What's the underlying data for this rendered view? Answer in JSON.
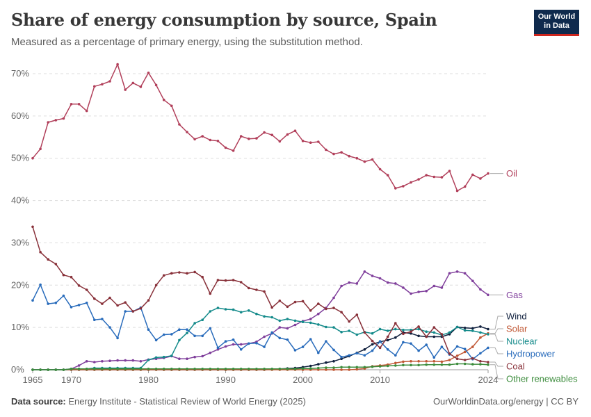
{
  "header": {
    "title": "Share of energy consumption by source, Spain",
    "subtitle": "Measured as a percentage of primary energy, using the substitution method.",
    "logo_line1": "Our World",
    "logo_line2": "in Data"
  },
  "footer": {
    "source_label": "Data source:",
    "source_text": "Energy Institute - Statistical Review of World Energy (2025)",
    "right_text": "OurWorldinData.org/energy | CC BY"
  },
  "chart_data": {
    "type": "line",
    "title": "Share of energy consumption by source, Spain",
    "subtitle": "Measured as a percentage of primary energy, using the substitution method.",
    "xlabel": "",
    "ylabel": "",
    "xlim": [
      1965,
      2024
    ],
    "ylim": [
      0,
      70
    ],
    "x_ticks": [
      1965,
      1970,
      1980,
      1990,
      2000,
      2010,
      2024
    ],
    "x_tick_labels": [
      "1965",
      "1970",
      "1980",
      "1990",
      "2000",
      "2010",
      "2024"
    ],
    "y_ticks": [
      0,
      10,
      20,
      30,
      40,
      50,
      60,
      70
    ],
    "y_tick_labels": [
      "0%",
      "10%",
      "20%",
      "30%",
      "40%",
      "50%",
      "60%",
      "70%"
    ],
    "grid": "horizontal dashed",
    "legend": "right, at line ends",
    "x": [
      1965,
      1966,
      1967,
      1968,
      1969,
      1970,
      1971,
      1972,
      1973,
      1974,
      1975,
      1976,
      1977,
      1978,
      1979,
      1980,
      1981,
      1982,
      1983,
      1984,
      1985,
      1986,
      1987,
      1988,
      1989,
      1990,
      1991,
      1992,
      1993,
      1994,
      1995,
      1996,
      1997,
      1998,
      1999,
      2000,
      2001,
      2002,
      2003,
      2004,
      2005,
      2006,
      2007,
      2008,
      2009,
      2010,
      2011,
      2012,
      2013,
      2014,
      2015,
      2016,
      2017,
      2018,
      2019,
      2020,
      2021,
      2022,
      2023,
      2024
    ],
    "series": [
      {
        "name": "Oil",
        "color": "#b13f5a",
        "values": [
          50,
          52.2,
          58.5,
          59,
          59.4,
          62.8,
          62.8,
          61.2,
          67,
          67.5,
          68.2,
          72.2,
          66.2,
          67.8,
          66.9,
          70.2,
          67.3,
          63.8,
          62.4,
          58,
          56.2,
          54.5,
          55.2,
          54.3,
          54.1,
          52.5,
          51.8,
          55.2,
          54.6,
          54.7,
          56.1,
          55.5,
          54,
          55.6,
          56.5,
          54.1,
          53.7,
          53.9,
          52,
          51,
          51.4,
          50.5,
          50,
          49.2,
          49.7,
          47.4,
          46,
          42.9,
          43.4,
          44.3,
          45,
          46,
          45.6,
          45.5,
          47,
          42.3,
          43.3,
          46.1,
          45.2,
          46.4
        ]
      },
      {
        "name": "Gas",
        "color": "#7f3e9b",
        "values": [
          0,
          0,
          0,
          0,
          0,
          0.2,
          1,
          2,
          1.8,
          2,
          2.1,
          2.2,
          2.2,
          2.2,
          2,
          2.4,
          2.6,
          2.8,
          3.2,
          2.6,
          2.6,
          3,
          3.2,
          4,
          4.8,
          5.5,
          6,
          6,
          6.2,
          6.6,
          7.8,
          8.6,
          10,
          9.8,
          10.6,
          11.5,
          12,
          13.2,
          14.6,
          17,
          19.8,
          20.6,
          20.4,
          23.2,
          22.2,
          21.6,
          20.6,
          20.4,
          19.4,
          18,
          18.4,
          18.6,
          19.8,
          19.4,
          22.8,
          23.2,
          22.8,
          21,
          19,
          17.7
        ]
      },
      {
        "name": "Wind",
        "color": "#0f1f3d",
        "values": [
          0,
          0,
          0,
          0,
          0,
          0,
          0,
          0,
          0,
          0,
          0,
          0,
          0,
          0,
          0,
          0,
          0,
          0,
          0,
          0,
          0,
          0,
          0,
          0,
          0,
          0,
          0,
          0,
          0,
          0,
          0,
          0.1,
          0.2,
          0.3,
          0.4,
          0.6,
          0.9,
          1.3,
          1.7,
          2,
          2.6,
          3.2,
          4,
          4.8,
          6,
          6.6,
          7,
          7.6,
          8.8,
          8.6,
          8,
          7.8,
          7.8,
          7.8,
          8.4,
          10.1,
          9.9,
          9.8,
          10.2,
          9.6
        ]
      },
      {
        "name": "Solar",
        "color": "#c05734",
        "values": [
          0,
          0,
          0,
          0,
          0,
          0,
          0,
          0,
          0,
          0,
          0,
          0,
          0,
          0,
          0,
          0,
          0,
          0,
          0,
          0,
          0,
          0,
          0,
          0,
          0,
          0,
          0,
          0,
          0,
          0,
          0,
          0,
          0,
          0,
          0,
          0,
          0,
          0,
          0,
          0,
          0,
          0,
          0.1,
          0.3,
          0.8,
          1,
          1.2,
          1.6,
          1.9,
          2,
          2,
          2,
          2,
          1.9,
          2.3,
          3.3,
          4.2,
          5.4,
          7.6,
          8.6
        ]
      },
      {
        "name": "Nuclear",
        "color": "#138a8a",
        "values": [
          0,
          0,
          0,
          0,
          0,
          0.2,
          0.2,
          0.2,
          0.4,
          0.4,
          0.4,
          0.4,
          0.4,
          0.4,
          0.4,
          2.3,
          2.9,
          3,
          3.3,
          7,
          8.7,
          11,
          11.8,
          13.8,
          14.6,
          14.3,
          14.2,
          13.6,
          14,
          13.2,
          12.6,
          12.4,
          11.6,
          12,
          11.6,
          11.3,
          11.1,
          10.7,
          10.1,
          10,
          8.9,
          9.2,
          8.3,
          8.9,
          8.6,
          9.6,
          9.2,
          9.6,
          9.4,
          9.4,
          9.6,
          9,
          8.8,
          8.2,
          8.8,
          10.1,
          9.3,
          9.2,
          8.8,
          8.4
        ]
      },
      {
        "name": "Hydropower",
        "color": "#286bbb",
        "values": [
          16.4,
          20.1,
          15.6,
          15.8,
          17.5,
          14.8,
          15.3,
          15.8,
          11.8,
          12,
          10,
          7.5,
          13.8,
          13.8,
          14.7,
          9.5,
          7,
          8.3,
          8.4,
          9.5,
          9.5,
          8,
          8,
          9.8,
          5.2,
          6.7,
          7.1,
          4.8,
          6.2,
          6.3,
          5.4,
          8.8,
          7.5,
          7.1,
          4.6,
          5.4,
          7.2,
          4,
          6.7,
          4.7,
          3,
          3.4,
          3.9,
          3.4,
          4.5,
          6.7,
          4.8,
          3.4,
          6.5,
          6.2,
          4.5,
          5.9,
          2.9,
          5.4,
          3.6,
          5.5,
          4.9,
          2.5,
          3.9,
          5.2
        ]
      },
      {
        "name": "Coal",
        "color": "#883039",
        "values": [
          33.8,
          27.8,
          26.1,
          25,
          22.4,
          21.9,
          19.9,
          18.9,
          16.8,
          15.6,
          17,
          15.2,
          15.9,
          13.8,
          14.5,
          16.4,
          20,
          22.3,
          22.8,
          23,
          22.8,
          23.1,
          21.9,
          18,
          21.2,
          21.1,
          21.2,
          20.7,
          19.3,
          18.9,
          18.5,
          14.7,
          16.3,
          14.9,
          16,
          16.2,
          14,
          15.6,
          14.4,
          14.6,
          13.6,
          11.4,
          13,
          8.8,
          6.8,
          5.2,
          7.8,
          11,
          8.5,
          9,
          10.2,
          7.8,
          10,
          8.4,
          3.8,
          2.6,
          2.3,
          2.7,
          2,
          1.8
        ]
      },
      {
        "name": "Other renewables",
        "color": "#3c8c3c",
        "values": [
          0,
          0,
          0,
          0,
          0,
          0.2,
          0.2,
          0.2,
          0.2,
          0.2,
          0.2,
          0.2,
          0.2,
          0.2,
          0.2,
          0.2,
          0.2,
          0.2,
          0.2,
          0.2,
          0.2,
          0.2,
          0.2,
          0.2,
          0.2,
          0.2,
          0.2,
          0.2,
          0.2,
          0.2,
          0.2,
          0.2,
          0.2,
          0.2,
          0.2,
          0.3,
          0.3,
          0.4,
          0.5,
          0.5,
          0.6,
          0.6,
          0.6,
          0.6,
          0.7,
          0.8,
          0.9,
          1,
          1.1,
          1.1,
          1.1,
          1.2,
          1.2,
          1.2,
          1.2,
          1.4,
          1.4,
          1.3,
          1.3,
          1.2
        ]
      }
    ]
  }
}
